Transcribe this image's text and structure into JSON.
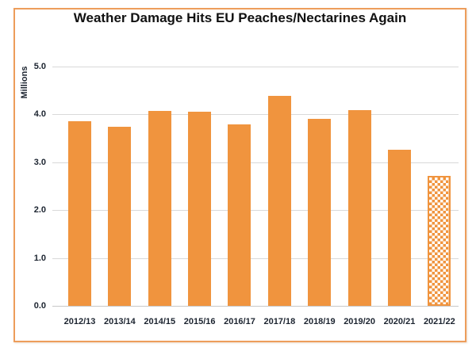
{
  "frame": {
    "border_color": "#ED9D5B",
    "background_color": "#FFFFFF"
  },
  "chart_data": {
    "type": "bar",
    "title": "Weather Damage Hits EU Peaches/Nectarines Again",
    "xlabel": "",
    "ylabel": "Millions",
    "categories": [
      "2012/13",
      "2013/14",
      "2014/15",
      "2015/16",
      "2016/17",
      "2017/18",
      "2018/19",
      "2019/20",
      "2020/21",
      "2021/22"
    ],
    "values": [
      3.85,
      3.74,
      4.06,
      4.05,
      3.79,
      4.38,
      3.9,
      4.08,
      3.25,
      2.71
    ],
    "ylim": [
      0,
      5
    ],
    "ytick_labels": [
      "0.0",
      "1.0",
      "2.0",
      "3.0",
      "4.0",
      "5.0"
    ],
    "grid": true,
    "legend_position": "none",
    "bar_color": "#F0943E",
    "gridline_color": "#D9D9D9",
    "checkered_categories": [
      "2021/22"
    ]
  }
}
